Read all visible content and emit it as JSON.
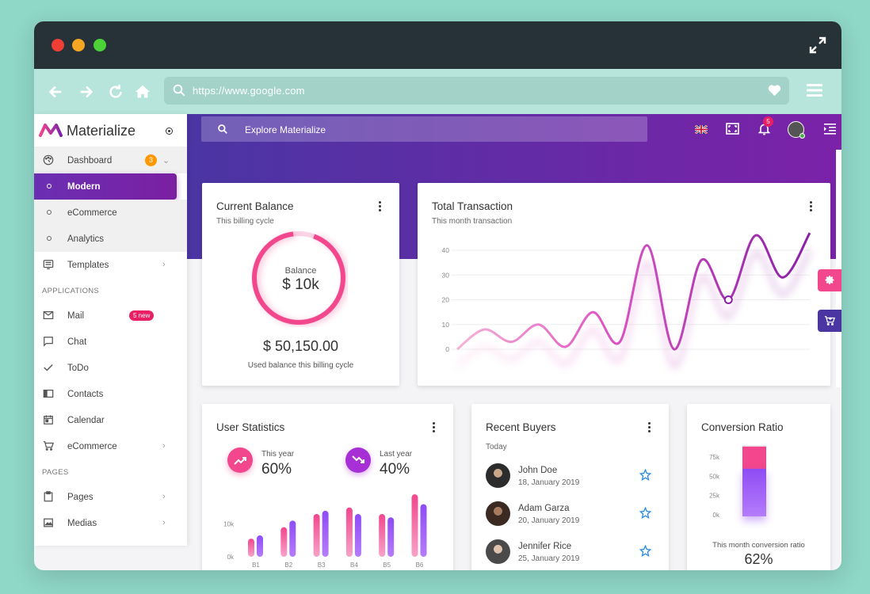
{
  "browser": {
    "url": "https://www.google.com"
  },
  "sidebar": {
    "brand": "Materialize",
    "dashboard": {
      "label": "Dashboard",
      "badge": "3"
    },
    "dashboard_items": [
      {
        "label": "Modern"
      },
      {
        "label": "eCommerce"
      },
      {
        "label": "Analytics"
      }
    ],
    "templates": {
      "label": "Templates"
    },
    "section_apps": "APPLICATIONS",
    "apps": [
      {
        "label": "Mail",
        "badge": "5 new"
      },
      {
        "label": "Chat"
      },
      {
        "label": "ToDo"
      },
      {
        "label": "Contacts"
      },
      {
        "label": "Calendar"
      },
      {
        "label": "eCommerce"
      }
    ],
    "section_pages": "PAGES",
    "pages": [
      {
        "label": "Pages"
      },
      {
        "label": "Medias"
      }
    ]
  },
  "topbar": {
    "search_placeholder": "Explore Materialize",
    "notification_count": "5"
  },
  "current_balance": {
    "title": "Current Balance",
    "subtitle": "This billing cycle",
    "ring_label": "Balance",
    "ring_value": "$ 10k",
    "amount": "$ 50,150.00",
    "caption": "Used balance this billing cycle"
  },
  "total_transaction": {
    "title": "Total Transaction",
    "subtitle": "This month transaction",
    "chart_data": {
      "type": "line",
      "y_ticks": [
        "40",
        "30",
        "20",
        "10",
        "0"
      ],
      "ylim": [
        0,
        40
      ],
      "values": [
        0,
        8,
        3,
        10,
        1,
        15,
        3,
        42,
        0,
        36,
        20,
        46,
        29,
        47
      ]
    }
  },
  "user_statistics": {
    "title": "User Statistics",
    "this_year_label": "This year",
    "this_year_value": "60%",
    "last_year_label": "Last year",
    "last_year_value": "40%",
    "chart_data": {
      "type": "bar",
      "categories": [
        "B1",
        "B2",
        "B3",
        "B4",
        "B5",
        "B6"
      ],
      "y_ticks": [
        "10k",
        "0k"
      ],
      "series": [
        {
          "values": [
            5.5,
            9,
            13,
            15,
            13,
            19
          ]
        },
        {
          "values": [
            6.5,
            11,
            14,
            13,
            12,
            16
          ]
        }
      ]
    }
  },
  "recent_buyers": {
    "title": "Recent Buyers",
    "subtitle": "Today",
    "buyers": [
      {
        "name": "John Doe",
        "date": "18, January 2019"
      },
      {
        "name": "Adam Garza",
        "date": "20, January 2019"
      },
      {
        "name": "Jennifer Rice",
        "date": "25, January 2019"
      }
    ]
  },
  "conversion_ratio": {
    "title": "Conversion Ratio",
    "caption": "This month conversion ratio",
    "value": "62%",
    "chart_data": {
      "type": "bar",
      "y_ticks": [
        "75k",
        "50k",
        "25k",
        "0k"
      ],
      "ratio": 0.62
    }
  },
  "colors": {
    "accent_pink": "#f2468d",
    "accent_purple": "#7b22a8",
    "header_gradient_start": "#4a35a3"
  }
}
